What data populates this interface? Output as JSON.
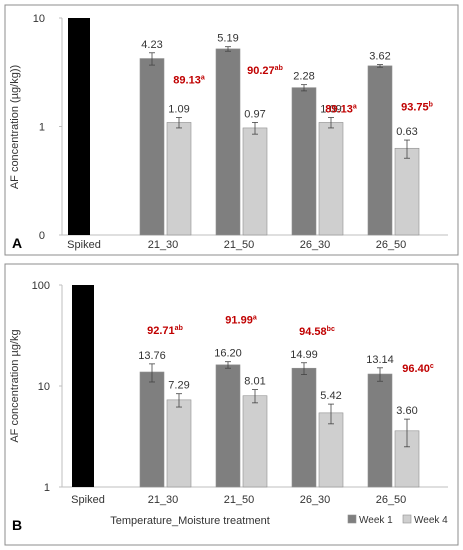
{
  "colors": {
    "spiked": "#000000",
    "week1": "#7f7f7f",
    "week4": "#cfcfcf",
    "reduction": "#c00000",
    "axis_text": "#333333",
    "panel_border": "#8c8c8c"
  },
  "legend": {
    "placement": "bottom-right",
    "items": [
      {
        "label": "Week 1",
        "color": "#7f7f7f"
      },
      {
        "label": "Week 4",
        "color": "#cfcfcf"
      }
    ]
  },
  "chart_data": [
    {
      "type": "bar",
      "panel_label": "A",
      "ylabel": "AF concentration (µg/kg))",
      "xlabel": "",
      "yscale": "log",
      "ylim": [
        0.1,
        10
      ],
      "yticks": [
        {
          "value": 10,
          "label": "10"
        },
        {
          "value": 1,
          "label": "1"
        },
        {
          "value": 0.1,
          "label": "0"
        }
      ],
      "categories": [
        "Spiked",
        "21_30",
        "21_50",
        "26_30",
        "26_50"
      ],
      "spiked_value": 10,
      "series": [
        {
          "name": "Week 1",
          "values": [
            null,
            4.23,
            5.19,
            2.28,
            3.62
          ],
          "labels": [
            "",
            "4.23",
            "5.19",
            "2.28",
            "3.62"
          ],
          "errors": [
            0,
            0.55,
            0.25,
            0.15,
            0.1
          ]
        },
        {
          "name": "Week 4",
          "values": [
            null,
            1.09,
            0.97,
            1.09,
            0.63
          ],
          "labels": [
            "",
            "1.09",
            "0.97",
            "1.09",
            "0.63"
          ],
          "errors": [
            0,
            0.12,
            0.12,
            0.12,
            0.12
          ]
        }
      ],
      "reductions": [
        {
          "category": "21_30",
          "value": "89.13",
          "sup": "a"
        },
        {
          "category": "21_50",
          "value": "90.27",
          "sup": "ab"
        },
        {
          "category": "26_30",
          "value": "89.13",
          "sup": "a"
        },
        {
          "category": "26_50",
          "value": "93.75",
          "sup": "b"
        }
      ]
    },
    {
      "type": "bar",
      "panel_label": "B",
      "ylabel": "AF concentration µg/kg",
      "xlabel": "Temperature_Moisture treatment",
      "yscale": "log",
      "ylim": [
        1,
        100
      ],
      "yticks": [
        {
          "value": 100,
          "label": "100"
        },
        {
          "value": 10,
          "label": "10"
        },
        {
          "value": 1,
          "label": "1"
        }
      ],
      "categories": [
        "Spiked",
        "21_30",
        "21_50",
        "26_30",
        "26_50"
      ],
      "spiked_value": 100,
      "series": [
        {
          "name": "Week 1",
          "values": [
            null,
            13.76,
            16.2,
            14.99,
            13.14
          ],
          "labels": [
            "",
            "13.76",
            "16.20",
            "14.99",
            "13.14"
          ],
          "errors": [
            0,
            2.8,
            1.2,
            2.0,
            2.0
          ]
        },
        {
          "name": "Week 4",
          "values": [
            null,
            7.29,
            8.01,
            5.42,
            3.6
          ],
          "labels": [
            "",
            "7.29",
            "8.01",
            "5.42",
            "3.60"
          ],
          "errors": [
            0,
            1.1,
            1.2,
            1.2,
            1.1
          ]
        }
      ],
      "reductions": [
        {
          "category": "21_30",
          "value": "92.71",
          "sup": "ab"
        },
        {
          "category": "21_50",
          "value": "91.99",
          "sup": "a"
        },
        {
          "category": "26_30",
          "value": "94.58",
          "sup": "bc"
        },
        {
          "category": "26_50",
          "value": "96.40",
          "sup": "c"
        }
      ]
    }
  ]
}
